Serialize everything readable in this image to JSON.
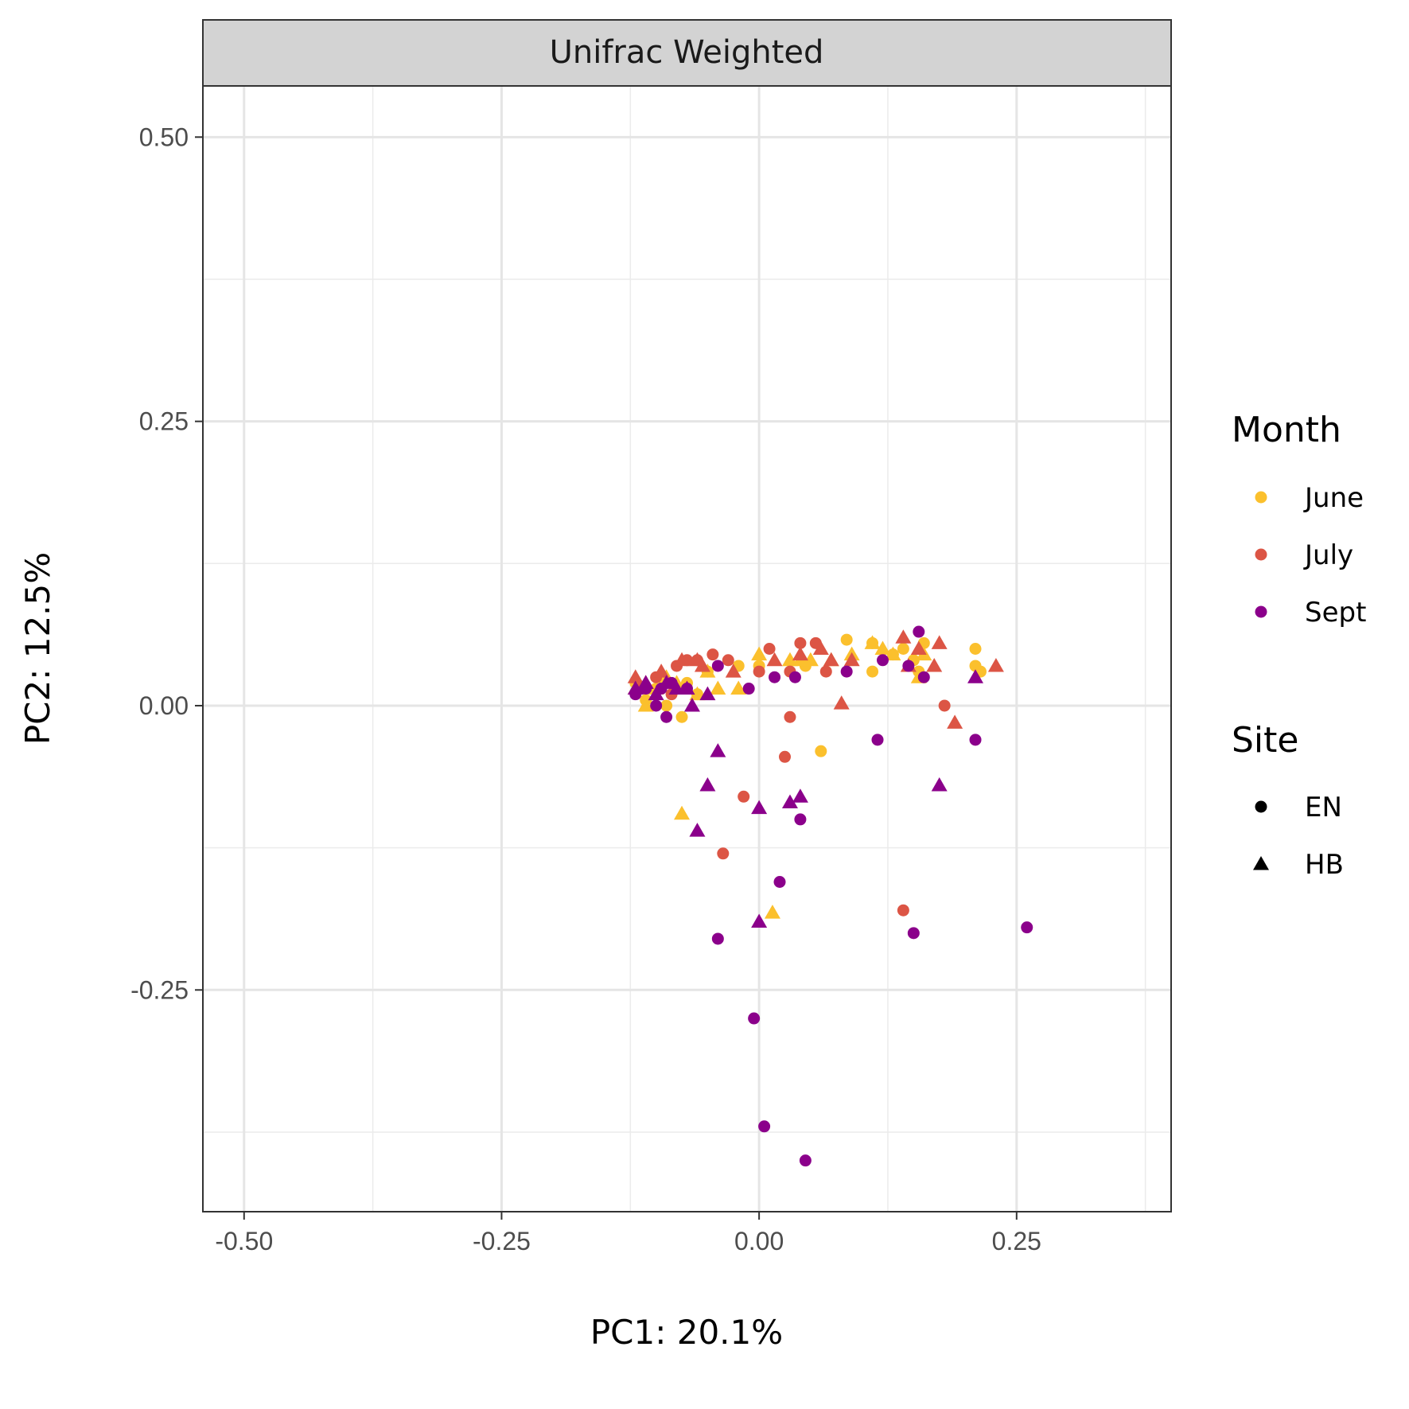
{
  "chart_data": {
    "type": "scatter",
    "facet_title": "Unifrac Weighted",
    "xlabel": "PC1:  20.1%",
    "ylabel": "PC2:  12.5%",
    "xlim": [
      -0.54,
      0.4
    ],
    "ylim": [
      -0.445,
      0.545
    ],
    "x_ticks": [
      -0.5,
      -0.25,
      0.0,
      0.25
    ],
    "x_tick_labels": [
      "-0.50",
      "-0.25",
      "0.00",
      "0.25"
    ],
    "y_ticks": [
      0.5,
      0.25,
      0.0,
      -0.25
    ],
    "y_tick_labels": [
      "0.50",
      "0.25",
      "0.00",
      "-0.25"
    ],
    "grid": true,
    "legend_position": "right",
    "legends": {
      "month": {
        "title": "Month",
        "items": [
          {
            "label": "June",
            "color": "#FBC02D"
          },
          {
            "label": "July",
            "color": "#DC5545"
          },
          {
            "label": "Sept",
            "color": "#8B008B"
          }
        ]
      },
      "site": {
        "title": "Site",
        "items": [
          {
            "label": "EN",
            "shape": "circle"
          },
          {
            "label": "HB",
            "shape": "triangle"
          }
        ]
      }
    },
    "series": [
      {
        "month": "June",
        "site": "EN",
        "points": [
          [
            0.085,
            0.058
          ],
          [
            0.11,
            0.055
          ],
          [
            0.14,
            0.05
          ],
          [
            0.16,
            0.055
          ],
          [
            0.21,
            0.05
          ],
          [
            0.21,
            0.035
          ],
          [
            0.215,
            0.03
          ],
          [
            0.11,
            0.03
          ],
          [
            0.06,
            -0.04
          ],
          [
            0.045,
            0.035
          ],
          [
            0.0,
            0.035
          ],
          [
            -0.02,
            0.035
          ],
          [
            -0.05,
            0.03
          ],
          [
            -0.07,
            0.02
          ],
          [
            -0.075,
            -0.01
          ],
          [
            -0.09,
            0.0
          ],
          [
            -0.11,
            0.005
          ],
          [
            -0.12,
            0.02
          ],
          [
            -0.1,
            0.015
          ],
          [
            0.15,
            0.04
          ],
          [
            0.155,
            0.03
          ],
          [
            0.13,
            0.045
          ],
          [
            -0.06,
            0.01
          ]
        ]
      },
      {
        "month": "June",
        "site": "HB",
        "points": [
          [
            -0.12,
            0.015
          ],
          [
            -0.11,
            0.0
          ],
          [
            -0.1,
            0.015
          ],
          [
            -0.09,
            0.025
          ],
          [
            -0.08,
            0.02
          ],
          [
            -0.06,
            0.01
          ],
          [
            -0.04,
            0.015
          ],
          [
            -0.02,
            0.015
          ],
          [
            0.0,
            0.045
          ],
          [
            0.03,
            0.04
          ],
          [
            0.05,
            0.04
          ],
          [
            0.07,
            0.04
          ],
          [
            0.09,
            0.045
          ],
          [
            0.11,
            0.055
          ],
          [
            0.12,
            0.05
          ],
          [
            0.13,
            0.045
          ],
          [
            0.155,
            0.025
          ],
          [
            0.16,
            0.045
          ],
          [
            -0.075,
            -0.095
          ],
          [
            0.013,
            -0.182
          ],
          [
            -0.05,
            0.03
          ],
          [
            0.04,
            0.04
          ]
        ]
      },
      {
        "month": "July",
        "site": "EN",
        "points": [
          [
            -0.08,
            0.035
          ],
          [
            -0.07,
            0.04
          ],
          [
            -0.06,
            0.04
          ],
          [
            -0.045,
            0.045
          ],
          [
            -0.03,
            0.04
          ],
          [
            0.01,
            0.05
          ],
          [
            0.04,
            0.055
          ],
          [
            0.055,
            0.055
          ],
          [
            0.065,
            0.03
          ],
          [
            0.03,
            0.03
          ],
          [
            0.03,
            -0.01
          ],
          [
            0.025,
            -0.045
          ],
          [
            -0.015,
            -0.08
          ],
          [
            -0.035,
            -0.13
          ],
          [
            0.18,
            0.0
          ],
          [
            0.14,
            -0.18
          ],
          [
            -0.1,
            0.025
          ],
          [
            -0.115,
            0.015
          ],
          [
            -0.085,
            0.01
          ],
          [
            0.0,
            0.03
          ]
        ]
      },
      {
        "month": "July",
        "site": "HB",
        "points": [
          [
            -0.12,
            0.025
          ],
          [
            -0.11,
            0.02
          ],
          [
            -0.095,
            0.03
          ],
          [
            -0.075,
            0.04
          ],
          [
            -0.055,
            0.035
          ],
          [
            -0.025,
            0.03
          ],
          [
            0.015,
            0.04
          ],
          [
            0.04,
            0.045
          ],
          [
            0.06,
            0.05
          ],
          [
            0.07,
            0.04
          ],
          [
            0.09,
            0.04
          ],
          [
            0.14,
            0.06
          ],
          [
            0.155,
            0.05
          ],
          [
            0.175,
            0.055
          ],
          [
            0.17,
            0.035
          ],
          [
            0.145,
            0.035
          ],
          [
            0.23,
            0.035
          ],
          [
            0.08,
            0.002
          ],
          [
            0.19,
            -0.015
          ],
          [
            -0.06,
            0.04
          ]
        ]
      },
      {
        "month": "Sept",
        "site": "EN",
        "points": [
          [
            -0.12,
            0.01
          ],
          [
            -0.11,
            0.015
          ],
          [
            -0.1,
            0.0
          ],
          [
            -0.09,
            -0.01
          ],
          [
            -0.085,
            0.02
          ],
          [
            -0.07,
            0.015
          ],
          [
            -0.04,
            0.035
          ],
          [
            -0.01,
            0.015
          ],
          [
            0.015,
            0.025
          ],
          [
            0.035,
            0.025
          ],
          [
            0.085,
            0.03
          ],
          [
            0.12,
            0.04
          ],
          [
            0.145,
            0.035
          ],
          [
            0.155,
            0.065
          ],
          [
            0.16,
            0.025
          ],
          [
            0.21,
            -0.03
          ],
          [
            0.115,
            -0.03
          ],
          [
            0.04,
            -0.1
          ],
          [
            0.02,
            -0.155
          ],
          [
            -0.04,
            -0.205
          ],
          [
            -0.005,
            -0.275
          ],
          [
            0.005,
            -0.37
          ],
          [
            0.045,
            -0.4
          ],
          [
            0.15,
            -0.2
          ],
          [
            0.26,
            -0.195
          ],
          [
            -0.095,
            0.015
          ]
        ]
      },
      {
        "month": "Sept",
        "site": "HB",
        "points": [
          [
            -0.12,
            0.015
          ],
          [
            -0.11,
            0.02
          ],
          [
            -0.1,
            0.01
          ],
          [
            -0.09,
            0.02
          ],
          [
            -0.08,
            0.015
          ],
          [
            -0.065,
            0.0
          ],
          [
            -0.05,
            0.01
          ],
          [
            -0.04,
            -0.04
          ],
          [
            -0.05,
            -0.07
          ],
          [
            -0.06,
            -0.11
          ],
          [
            0.0,
            -0.09
          ],
          [
            0.03,
            -0.085
          ],
          [
            0.04,
            -0.08
          ],
          [
            0.0,
            -0.19
          ],
          [
            0.175,
            -0.07
          ],
          [
            0.21,
            0.025
          ],
          [
            -0.07,
            0.015
          ]
        ]
      }
    ]
  }
}
